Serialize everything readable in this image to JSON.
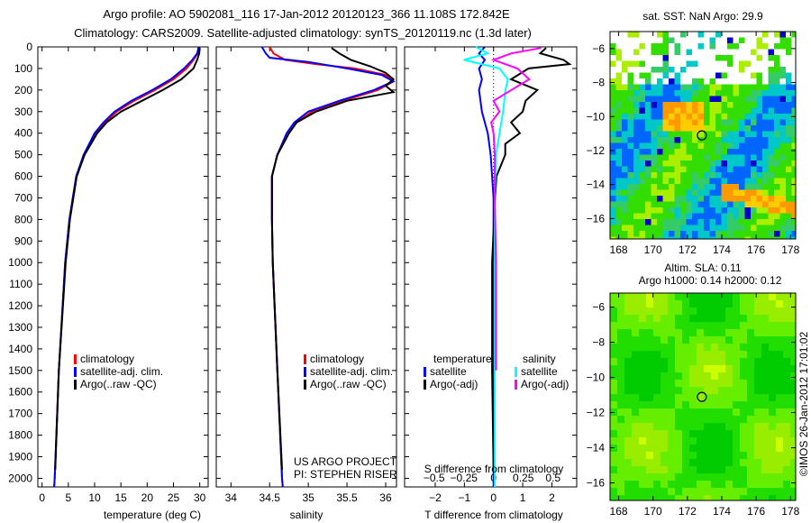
{
  "title_line1": "Argo profile: AO 5902081_116 17-Jan-2012 20120123_366 11.108S 172.842E",
  "title_line2": "Climatology: CARS2009. Satellite-adjusted climatology: synTS_20120119.nc (1.3d later)",
  "credit": "©IMOS 26-Jan-2012 17:01:02",
  "project_line1": "US ARGO PROJECT",
  "project_line2": "PI: STEPHEN RISER",
  "colors": {
    "climatology": "#ff0000",
    "satellite": "#0000ff",
    "argo": "#000000",
    "sal_satellite": "#00ffff",
    "sal_argo": "#ff00ff"
  },
  "chart_data": [
    {
      "type": "line",
      "name": "temperature-profile",
      "xlabel": "temperature (deg C)",
      "ylabel": "",
      "xlim": [
        -0.8,
        31.6
      ],
      "ylim": [
        2040,
        0
      ],
      "xticks": [
        0,
        5,
        10,
        15,
        20,
        25,
        30
      ],
      "yticks": [
        0,
        100,
        200,
        300,
        400,
        500,
        600,
        700,
        800,
        900,
        1000,
        1100,
        1200,
        1300,
        1400,
        1500,
        1600,
        1700,
        1800,
        1900,
        2000
      ],
      "legend": [
        "climatology",
        "satellite-adj. clim.",
        "Argo(..raw -QC)"
      ],
      "legend_placement": "bottom-center",
      "series": [
        {
          "name": "climatology",
          "color": "#ff0000",
          "depth": [
            0,
            30,
            60,
            100,
            150,
            200,
            250,
            300,
            350,
            400,
            500,
            600,
            800,
            1000,
            1500,
            2000,
            2040
          ],
          "values": [
            29.8,
            29.6,
            28.8,
            27.5,
            25,
            21.5,
            17.5,
            14.2,
            12,
            10.2,
            8,
            6.5,
            5.2,
            4.4,
            3.2,
            2.4,
            2.3
          ]
        },
        {
          "name": "satellite-adj. clim.",
          "color": "#0000ff",
          "depth": [
            0,
            30,
            60,
            100,
            150,
            200,
            250,
            300,
            350,
            400,
            500,
            600,
            800,
            1000,
            1500,
            2000,
            2040
          ],
          "values": [
            29.8,
            29.5,
            28.6,
            27,
            24.5,
            21,
            17,
            13.8,
            11.7,
            10,
            7.9,
            6.5,
            5.2,
            4.4,
            3.2,
            2.4,
            2.3
          ]
        },
        {
          "name": "Argo(..raw -QC)",
          "color": "#000000",
          "depth": [
            5,
            30,
            60,
            100,
            150,
            200,
            250,
            300,
            350,
            400,
            500,
            600,
            800,
            1000,
            1500,
            1960
          ],
          "values": [
            30,
            29.9,
            29.5,
            28.8,
            26.5,
            23,
            19,
            15,
            12.3,
            10.5,
            8.1,
            6.6,
            5.3,
            4.5,
            3.2,
            2.5
          ]
        }
      ]
    },
    {
      "type": "line",
      "name": "salinity-profile",
      "xlabel": "salinity",
      "xlim": [
        33.81,
        36.14
      ],
      "ylim": [
        2040,
        0
      ],
      "xticks": [
        34,
        34.5,
        35,
        35.5,
        36
      ],
      "legend": [
        "climatology",
        "satellite-adj. clim.",
        "Argo(..raw -QC)"
      ],
      "legend_placement": "bottom-center",
      "series": [
        {
          "name": "climatology",
          "color": "#ff0000",
          "depth": [
            0,
            30,
            60,
            80,
            100,
            130,
            160,
            200,
            250,
            300,
            350,
            400,
            500,
            600,
            800,
            1000,
            1500,
            2000,
            2040
          ],
          "values": [
            34.5,
            34.55,
            34.7,
            35.1,
            35.6,
            36.0,
            36.1,
            35.9,
            35.45,
            35.05,
            34.85,
            34.75,
            34.6,
            34.53,
            34.53,
            34.54,
            34.6,
            34.66,
            34.67
          ]
        },
        {
          "name": "satellite-adj. clim.",
          "color": "#0000ff",
          "depth": [
            0,
            30,
            50,
            70,
            100,
            130,
            160,
            200,
            250,
            300,
            350,
            400,
            500,
            600,
            800,
            1000,
            1500,
            2000,
            2040
          ],
          "values": [
            34.4,
            34.45,
            34.5,
            35.0,
            35.5,
            35.95,
            36.1,
            35.85,
            35.4,
            35.0,
            34.82,
            34.72,
            34.6,
            34.53,
            34.53,
            34.54,
            34.6,
            34.66,
            34.67
          ]
        },
        {
          "name": "Argo(..raw -QC)",
          "color": "#000000",
          "depth": [
            5,
            30,
            60,
            90,
            120,
            150,
            180,
            210,
            250,
            300,
            350,
            400,
            500,
            600,
            800,
            1000,
            1500,
            1960
          ],
          "values": [
            35.3,
            35.4,
            35.55,
            35.8,
            36.0,
            36.1,
            36.0,
            36.1,
            35.5,
            35.1,
            34.85,
            34.75,
            34.6,
            34.53,
            34.53,
            34.54,
            34.6,
            34.66
          ]
        }
      ]
    },
    {
      "type": "line",
      "name": "difference-profile",
      "xlabel": "T difference from climatology",
      "x2label": "S difference from climatology",
      "xlim": [
        -3.05,
        2.85
      ],
      "x2lim": [
        -0.5,
        0.5
      ],
      "xticks": [
        -2,
        -1,
        0,
        1,
        2
      ],
      "x2ticks": [
        -0.5,
        -0.25,
        0,
        0.25,
        0.5
      ],
      "ylim": [
        2040,
        0
      ],
      "legend_temperature": {
        "title": "temperature",
        "items": [
          "satellite",
          "Argo(-adj)"
        ]
      },
      "legend_salinity": {
        "title": "salinity",
        "items": [
          "satellite",
          "Argo(-adj)"
        ]
      },
      "series": [
        {
          "name": "temperature satellite",
          "axis": "T",
          "color": "#0000ff",
          "depth": [
            0,
            30,
            60,
            100,
            150,
            200,
            300,
            400,
            500,
            700,
            1000,
            1500,
            2040
          ],
          "values": [
            -0.3,
            -0.5,
            -0.3,
            -0.5,
            -0.4,
            -0.5,
            -0.4,
            -0.2,
            -0.1,
            0,
            0,
            0,
            0
          ]
        },
        {
          "name": "temperature Argo(-adj)",
          "axis": "T",
          "color": "#000000",
          "depth": [
            5,
            30,
            60,
            80,
            100,
            150,
            200,
            250,
            300,
            350,
            400,
            450,
            500,
            600,
            700,
            1000,
            1500,
            1960
          ],
          "values": [
            1.8,
            1.6,
            2.4,
            2.6,
            1.2,
            0.6,
            1.5,
            1.1,
            1.0,
            0.6,
            0.9,
            0.4,
            0.4,
            0.1,
            0.05,
            -0.05,
            -0.05,
            0
          ]
        },
        {
          "name": "salinity satellite",
          "axis": "S",
          "color": "#00ffff",
          "depth": [
            0,
            30,
            60,
            100,
            150,
            200,
            300,
            400,
            500,
            700,
            1000,
            1500,
            2040
          ],
          "values": [
            -0.15,
            -0.05,
            -0.25,
            0.05,
            0.12,
            0.1,
            0.08,
            0.05,
            0.02,
            0.01,
            0.01,
            0.01,
            0.01
          ]
        },
        {
          "name": "salinity Argo(-adj)",
          "axis": "S",
          "color": "#ff00ff",
          "depth": [
            5,
            30,
            60,
            100,
            150,
            200,
            250,
            300,
            350,
            400,
            500,
            700,
            1000,
            1500
          ],
          "values": [
            0.4,
            0.15,
            0.0,
            0.2,
            0.3,
            0.15,
            0.0,
            0.05,
            -0.02,
            0.0,
            0.01,
            0.01,
            0.02,
            0.02
          ]
        }
      ]
    },
    {
      "type": "heatmap",
      "name": "sst-map",
      "title": "sat. SST: NaN Argo: 29.9",
      "xlim": [
        167.5,
        178.3
      ],
      "ylim": [
        -17.2,
        -5
      ],
      "xticks": [
        168,
        170,
        172,
        174,
        176,
        178
      ],
      "yticks": [
        -6,
        -8,
        -10,
        -12,
        -14,
        -16
      ],
      "marker": {
        "lon": 172.842,
        "lat": -11.108
      }
    },
    {
      "type": "heatmap",
      "name": "sla-map",
      "title_line1": "Altim. SLA: 0.11",
      "title_line2": "Argo h1000: 0.14 h2000: 0.12",
      "xlim": [
        167.5,
        178.3
      ],
      "ylim": [
        -17,
        -5.2
      ],
      "xticks": [
        168,
        170,
        172,
        174,
        176,
        178
      ],
      "yticks": [
        -6,
        -8,
        -10,
        -12,
        -14,
        -16
      ],
      "marker": {
        "lon": 172.842,
        "lat": -11.108
      }
    }
  ]
}
